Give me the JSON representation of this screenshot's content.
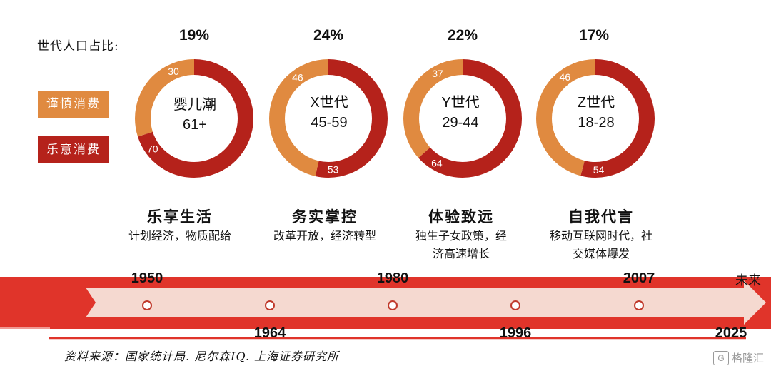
{
  "legend": {
    "title": "世代人口占比:",
    "items": [
      {
        "label": "谨慎消费",
        "color": "#e08a40"
      },
      {
        "label": "乐意消费",
        "color": "#b5221b"
      }
    ]
  },
  "chart_data": {
    "type": "pie",
    "series_names": [
      "谨慎消费",
      "乐意消费"
    ],
    "colors": {
      "cautious": "#e08a40",
      "willing": "#b5221b"
    },
    "generations": [
      {
        "name": "婴儿潮",
        "age": "61+",
        "share": "19%",
        "cautious": 30,
        "willing": 70
      },
      {
        "name": "X世代",
        "age": "45-59",
        "share": "24%",
        "cautious": 46,
        "willing": 53
      },
      {
        "name": "Y世代",
        "age": "29-44",
        "share": "22%",
        "cautious": 37,
        "willing": 64
      },
      {
        "name": "Z世代",
        "age": "18-28",
        "share": "17%",
        "cautious": 46,
        "willing": 54
      }
    ]
  },
  "eras": [
    {
      "title": "乐享生活",
      "desc": [
        "计划经济，物质配给"
      ]
    },
    {
      "title": "务实掌控",
      "desc": [
        "改革开放，经济转型"
      ]
    },
    {
      "title": "体验致远",
      "desc": [
        "独生子女政策，经",
        "济高速增长"
      ]
    },
    {
      "title": "自我代言",
      "desc": [
        "移动互联网时代，社",
        "交媒体爆发"
      ]
    }
  ],
  "timeline": {
    "top_years": [
      "1950",
      "1980",
      "2007"
    ],
    "bottom_years": [
      "1964",
      "1996",
      "2025"
    ],
    "end_label": "未来",
    "color": "#e0342a"
  },
  "source": "资料来源：国家统计局. 尼尔森IQ. 上海证券研究所",
  "watermark": "格隆汇",
  "watermark_icon": "G"
}
